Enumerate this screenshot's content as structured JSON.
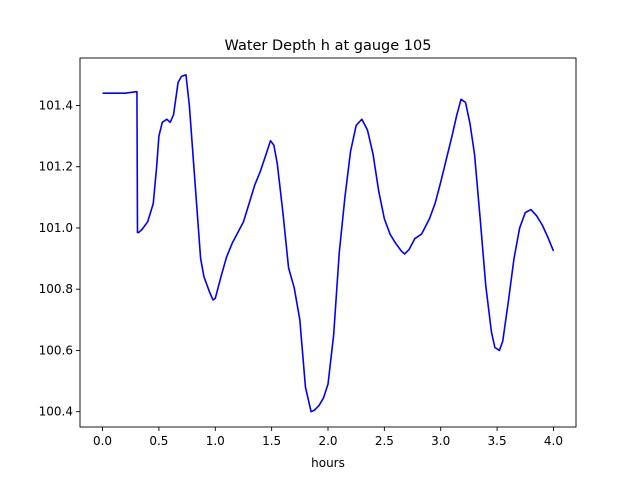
{
  "chart_data": {
    "type": "line",
    "title": "Water Depth h at gauge 105",
    "xlabel": "hours",
    "ylabel": "",
    "xlim": [
      -0.2,
      4.2
    ],
    "ylim": [
      100.35,
      101.555
    ],
    "xticks": [
      0.0,
      0.5,
      1.0,
      1.5,
      2.0,
      2.5,
      3.0,
      3.5,
      4.0
    ],
    "xtick_labels": [
      "0.0",
      "0.5",
      "1.0",
      "1.5",
      "2.0",
      "2.5",
      "3.0",
      "3.5",
      "4.0"
    ],
    "yticks": [
      100.4,
      100.6,
      100.8,
      101.0,
      101.2,
      101.4
    ],
    "ytick_labels": [
      "100.4",
      "100.6",
      "100.8",
      "101.0",
      "101.2",
      "101.4"
    ],
    "grid": false,
    "series": [
      {
        "name": "",
        "color": "#0000ff",
        "x": [
          0.0,
          0.1,
          0.2,
          0.3,
          0.305,
          0.31,
          0.32,
          0.35,
          0.4,
          0.45,
          0.48,
          0.5,
          0.53,
          0.57,
          0.6,
          0.63,
          0.67,
          0.7,
          0.74,
          0.77,
          0.82,
          0.87,
          0.9,
          0.95,
          0.98,
          1.0,
          1.05,
          1.1,
          1.15,
          1.25,
          1.3,
          1.35,
          1.4,
          1.45,
          1.49,
          1.52,
          1.55,
          1.6,
          1.65,
          1.7,
          1.75,
          1.8,
          1.85,
          1.88,
          1.92,
          1.96,
          2.0,
          2.05,
          2.1,
          2.15,
          2.2,
          2.25,
          2.3,
          2.35,
          2.4,
          2.45,
          2.5,
          2.55,
          2.6,
          2.65,
          2.68,
          2.72,
          2.77,
          2.83,
          2.9,
          2.95,
          3.0,
          3.05,
          3.1,
          3.14,
          3.18,
          3.22,
          3.26,
          3.3,
          3.35,
          3.4,
          3.45,
          3.48,
          3.52,
          3.55,
          3.6,
          3.65,
          3.7,
          3.75,
          3.8,
          3.85,
          3.9,
          3.95,
          4.0
        ],
        "y": [
          101.44,
          101.44,
          101.44,
          101.445,
          101.445,
          100.985,
          100.985,
          100.995,
          101.02,
          101.08,
          101.2,
          101.3,
          101.345,
          101.355,
          101.345,
          101.37,
          101.475,
          101.495,
          101.5,
          101.4,
          101.15,
          100.9,
          100.84,
          100.79,
          100.765,
          100.77,
          100.84,
          100.905,
          100.95,
          101.02,
          101.08,
          101.14,
          101.185,
          101.24,
          101.285,
          101.27,
          101.21,
          101.05,
          100.87,
          100.805,
          100.7,
          100.48,
          100.4,
          100.405,
          100.42,
          100.445,
          100.49,
          100.65,
          100.92,
          101.1,
          101.25,
          101.335,
          101.355,
          101.32,
          101.24,
          101.12,
          101.03,
          100.98,
          100.95,
          100.925,
          100.915,
          100.93,
          100.965,
          100.98,
          101.03,
          101.08,
          101.15,
          101.225,
          101.3,
          101.365,
          101.42,
          101.41,
          101.34,
          101.24,
          101.03,
          100.81,
          100.66,
          100.61,
          100.6,
          100.63,
          100.76,
          100.9,
          101.0,
          101.05,
          101.06,
          101.04,
          101.01,
          100.97,
          100.925
        ]
      }
    ]
  }
}
